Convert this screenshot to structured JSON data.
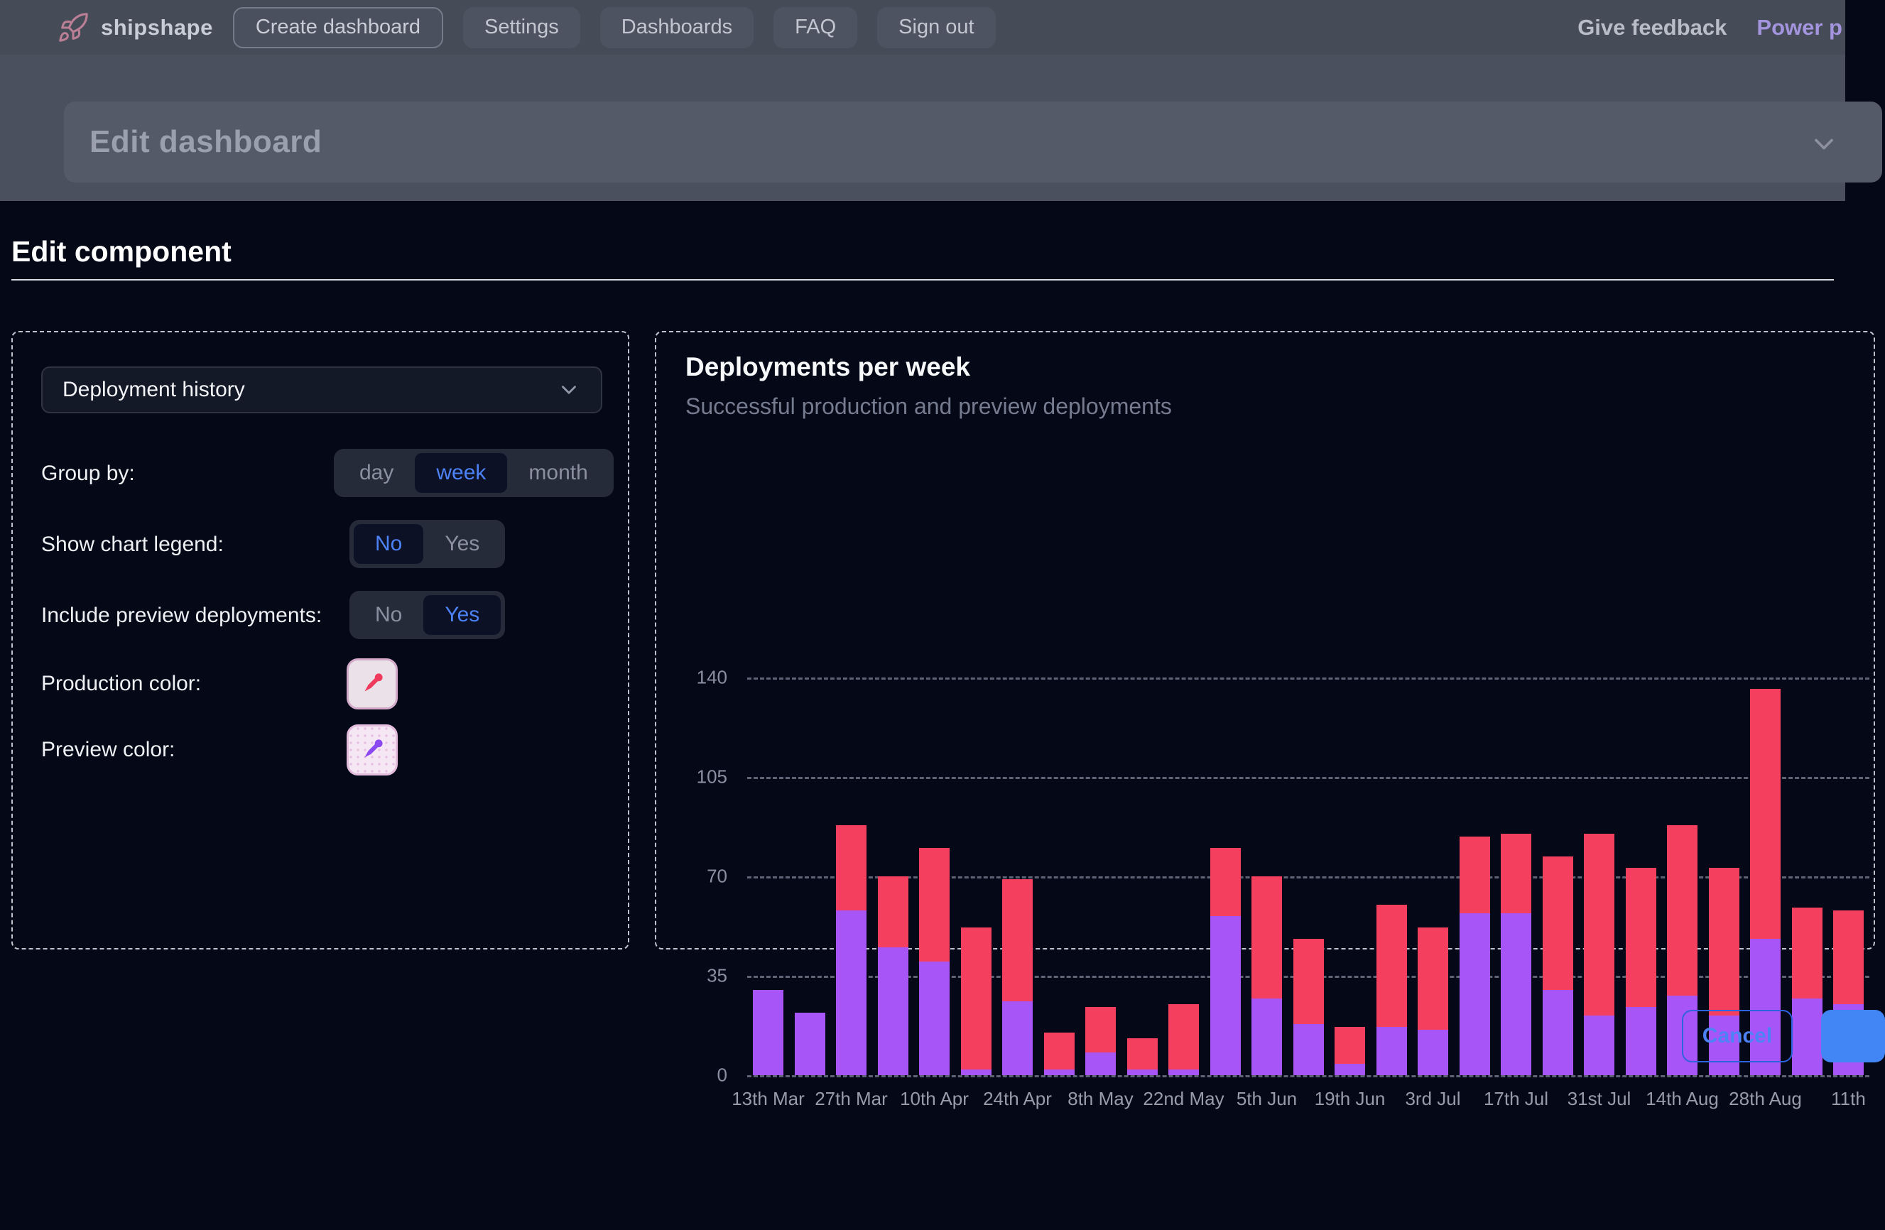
{
  "nav": {
    "brand": "shipshape",
    "items": [
      {
        "label": "Create dashboard"
      },
      {
        "label": "Settings"
      },
      {
        "label": "Dashboards"
      },
      {
        "label": "FAQ"
      },
      {
        "label": "Sign out"
      }
    ],
    "right": {
      "feedback": "Give feedback",
      "power": "Power p"
    }
  },
  "dashboard_header": {
    "title": "Edit dashboard"
  },
  "modal": {
    "title": "Edit component"
  },
  "editor": {
    "component_select": {
      "value": "Deployment history"
    },
    "rows": [
      {
        "label": "Group by:",
        "options": [
          "day",
          "week",
          "month"
        ],
        "selected": "week"
      },
      {
        "label": "Show chart legend:",
        "options": [
          "No",
          "Yes"
        ],
        "selected": "No"
      },
      {
        "label": "Include preview deployments:",
        "options": [
          "No",
          "Yes"
        ],
        "selected": "Yes"
      },
      {
        "label": "Production color:",
        "color": "#f43f5e"
      },
      {
        "label": "Preview color:",
        "color": "#a855f7"
      }
    ]
  },
  "chart_data": {
    "type": "bar",
    "stacked": true,
    "title": "Deployments per week",
    "subtitle": "Successful production and preview deployments",
    "ylim": [
      0,
      140
    ],
    "yticks": [
      0,
      35,
      70,
      105,
      140
    ],
    "grid": "dashed horizontal",
    "legend": "hidden",
    "series": [
      {
        "name": "preview",
        "color": "#a855f7",
        "values": [
          30,
          22,
          58,
          45,
          40,
          2,
          26,
          2,
          8,
          2,
          2,
          56,
          27,
          18,
          4,
          17,
          16,
          57,
          57,
          30,
          21,
          24,
          28,
          21,
          48,
          27,
          25
        ]
      },
      {
        "name": "production",
        "color": "#f43f5e",
        "values": [
          0,
          0,
          30,
          25,
          40,
          50,
          43,
          13,
          16,
          11,
          23,
          24,
          43,
          30,
          13,
          43,
          36,
          27,
          28,
          47,
          64,
          49,
          60,
          52,
          88,
          32,
          33
        ]
      }
    ],
    "x_labels": [
      "13th Mar",
      "27th Mar",
      "10th Apr",
      "24th Apr",
      "8th May",
      "22nd May",
      "5th Jun",
      "19th Jun",
      "3rd Jul",
      "17th Jul",
      "31st Jul",
      "14th Aug",
      "28th Aug",
      "11th"
    ],
    "x_label_every_n_bars": 2
  },
  "footer": {
    "cancel_label": "Cancel"
  }
}
